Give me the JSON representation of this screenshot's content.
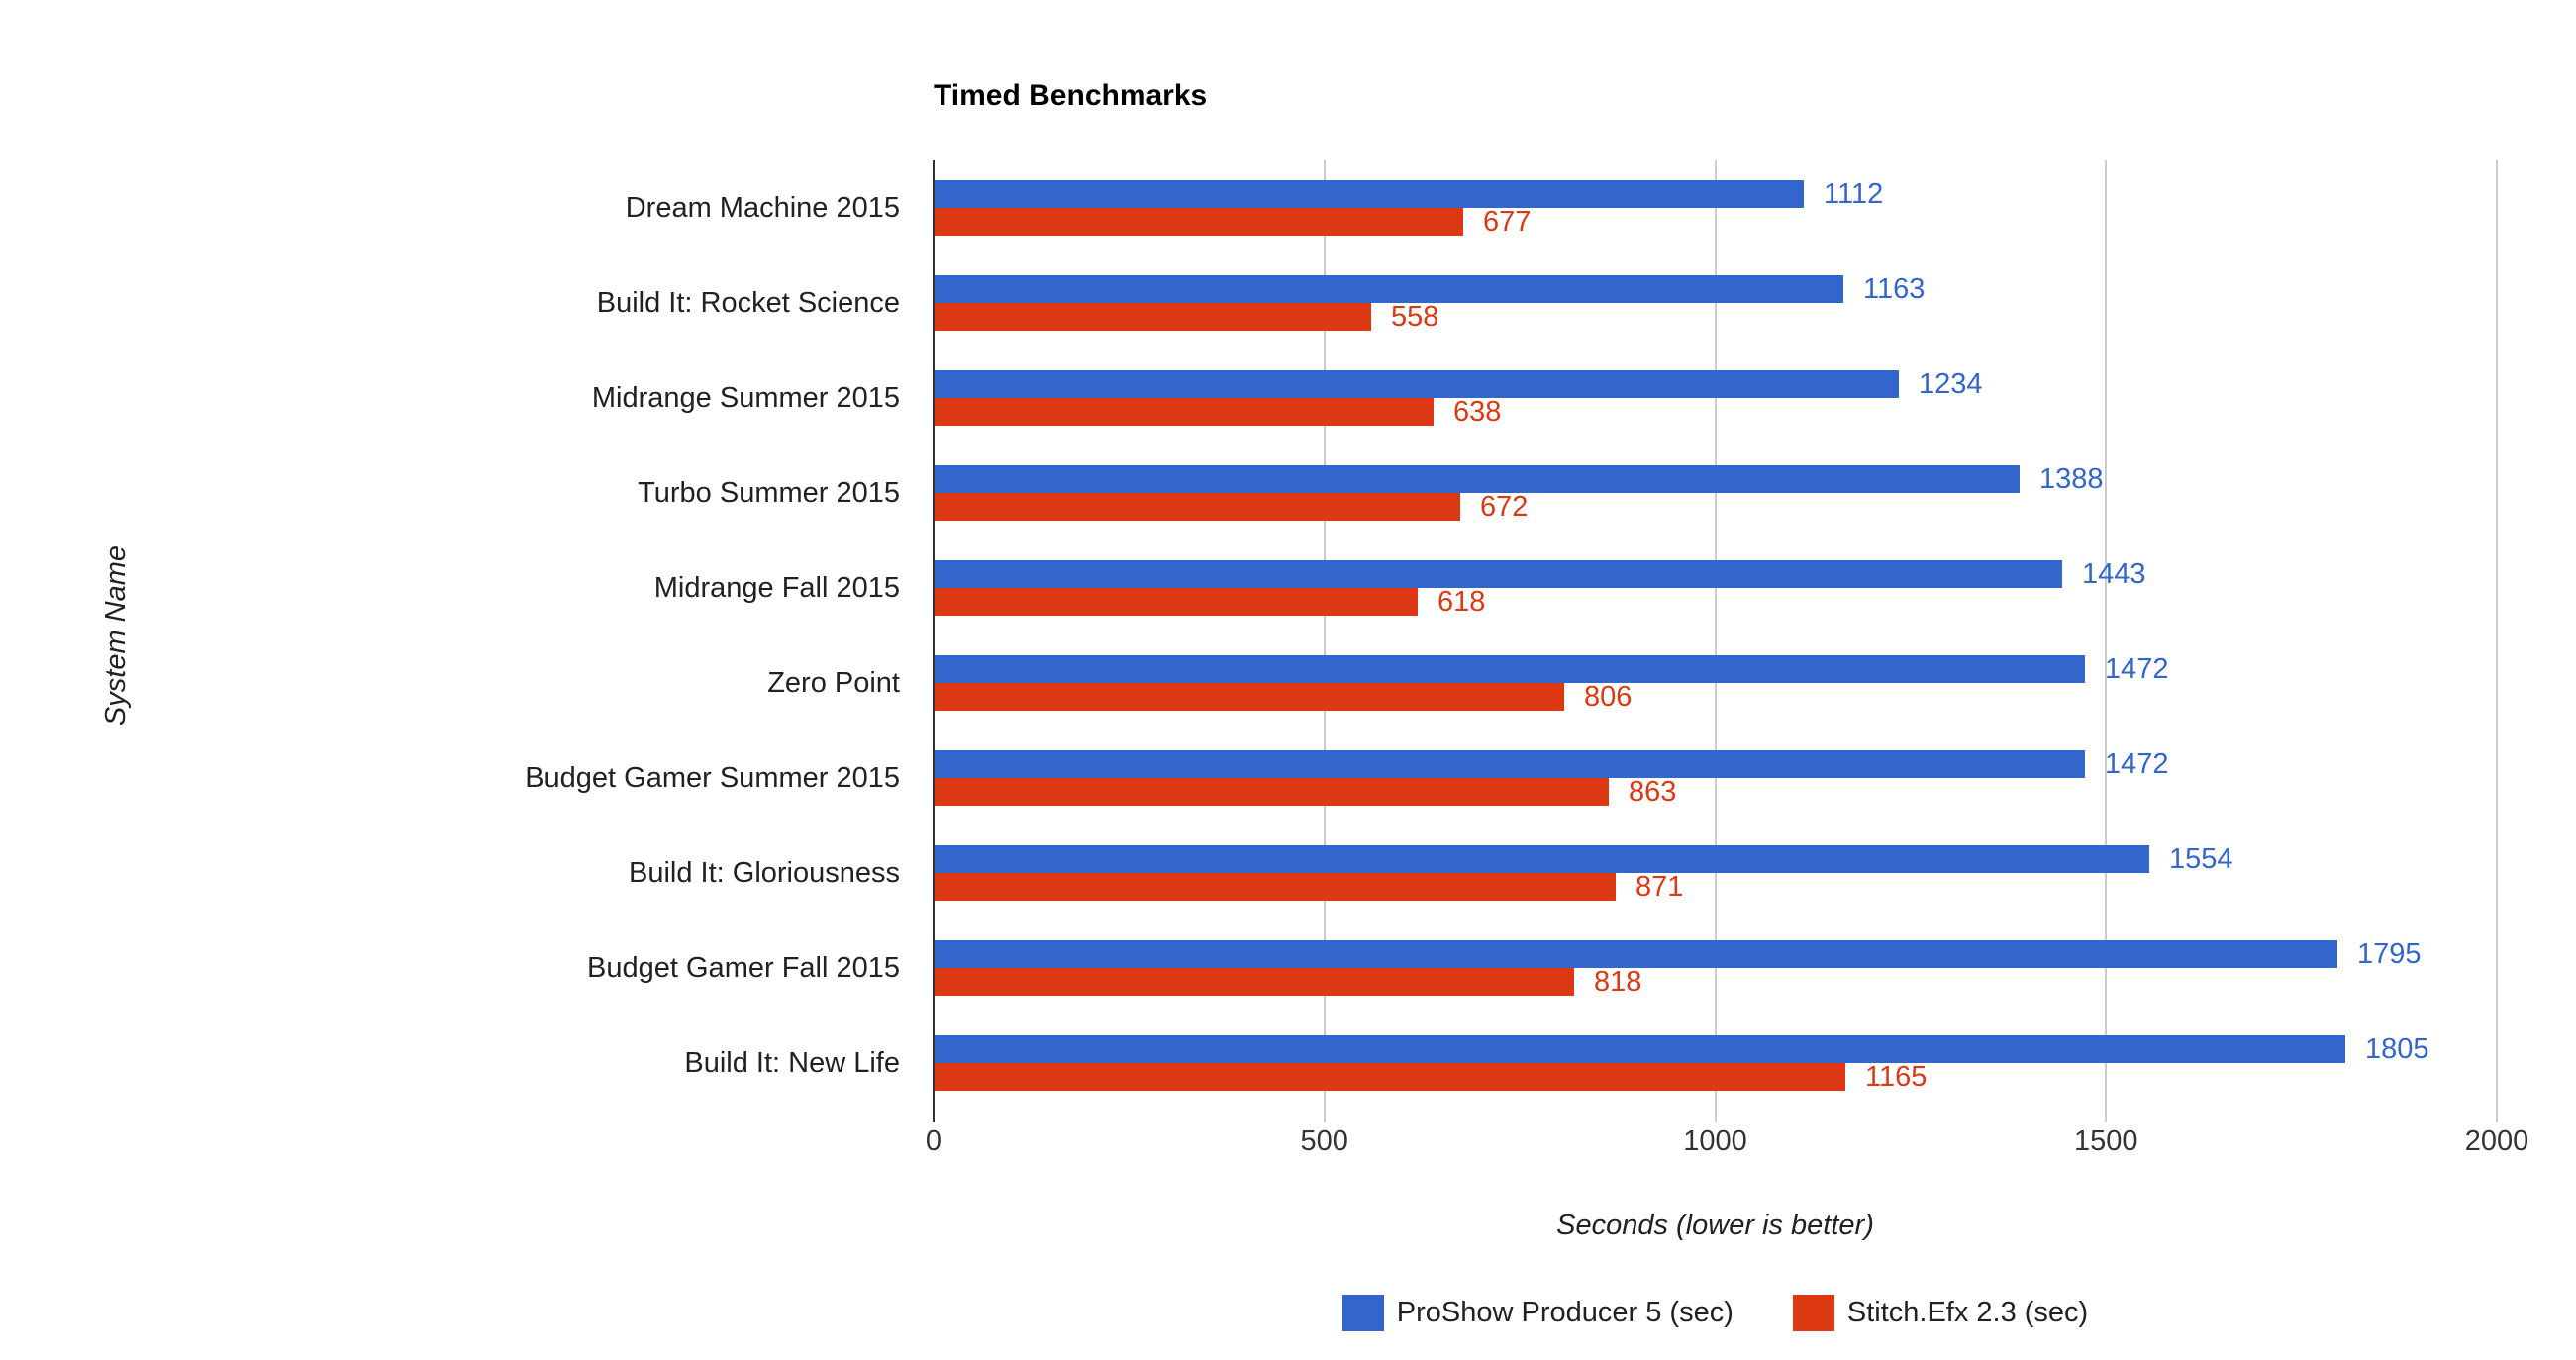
{
  "chart_data": {
    "type": "bar",
    "orientation": "horizontal",
    "title": "Timed Benchmarks",
    "xlabel": "Seconds (lower is better)",
    "ylabel": "System Name",
    "categories": [
      "Dream Machine 2015",
      "Build It: Rocket Science",
      "Midrange Summer 2015",
      "Turbo Summer 2015",
      "Midrange Fall 2015",
      "Zero Point",
      "Budget Gamer Summer 2015",
      "Build It: Gloriousness",
      "Budget Gamer Fall 2015",
      "Build It: New Life"
    ],
    "series": [
      {
        "name": "ProShow Producer 5 (sec)",
        "color": "#3366CC",
        "values": [
          1112,
          1163,
          1234,
          1388,
          1443,
          1472,
          1472,
          1554,
          1795,
          1805
        ]
      },
      {
        "name": "Stitch.Efx 2.3 (sec)",
        "color": "#DC3912",
        "values": [
          677,
          558,
          638,
          672,
          618,
          806,
          863,
          871,
          818,
          1165
        ]
      }
    ],
    "xticks": [
      0,
      500,
      1000,
      1500,
      2000
    ],
    "xlim": [
      0,
      2000
    ],
    "grid": "vertical",
    "legend_position": "bottom",
    "annotations": true
  },
  "style": {
    "grid_color": "#cccccc",
    "axis_color": "#333333",
    "text_color": "#212121",
    "title_color": "#000000",
    "background": "#ffffff"
  }
}
